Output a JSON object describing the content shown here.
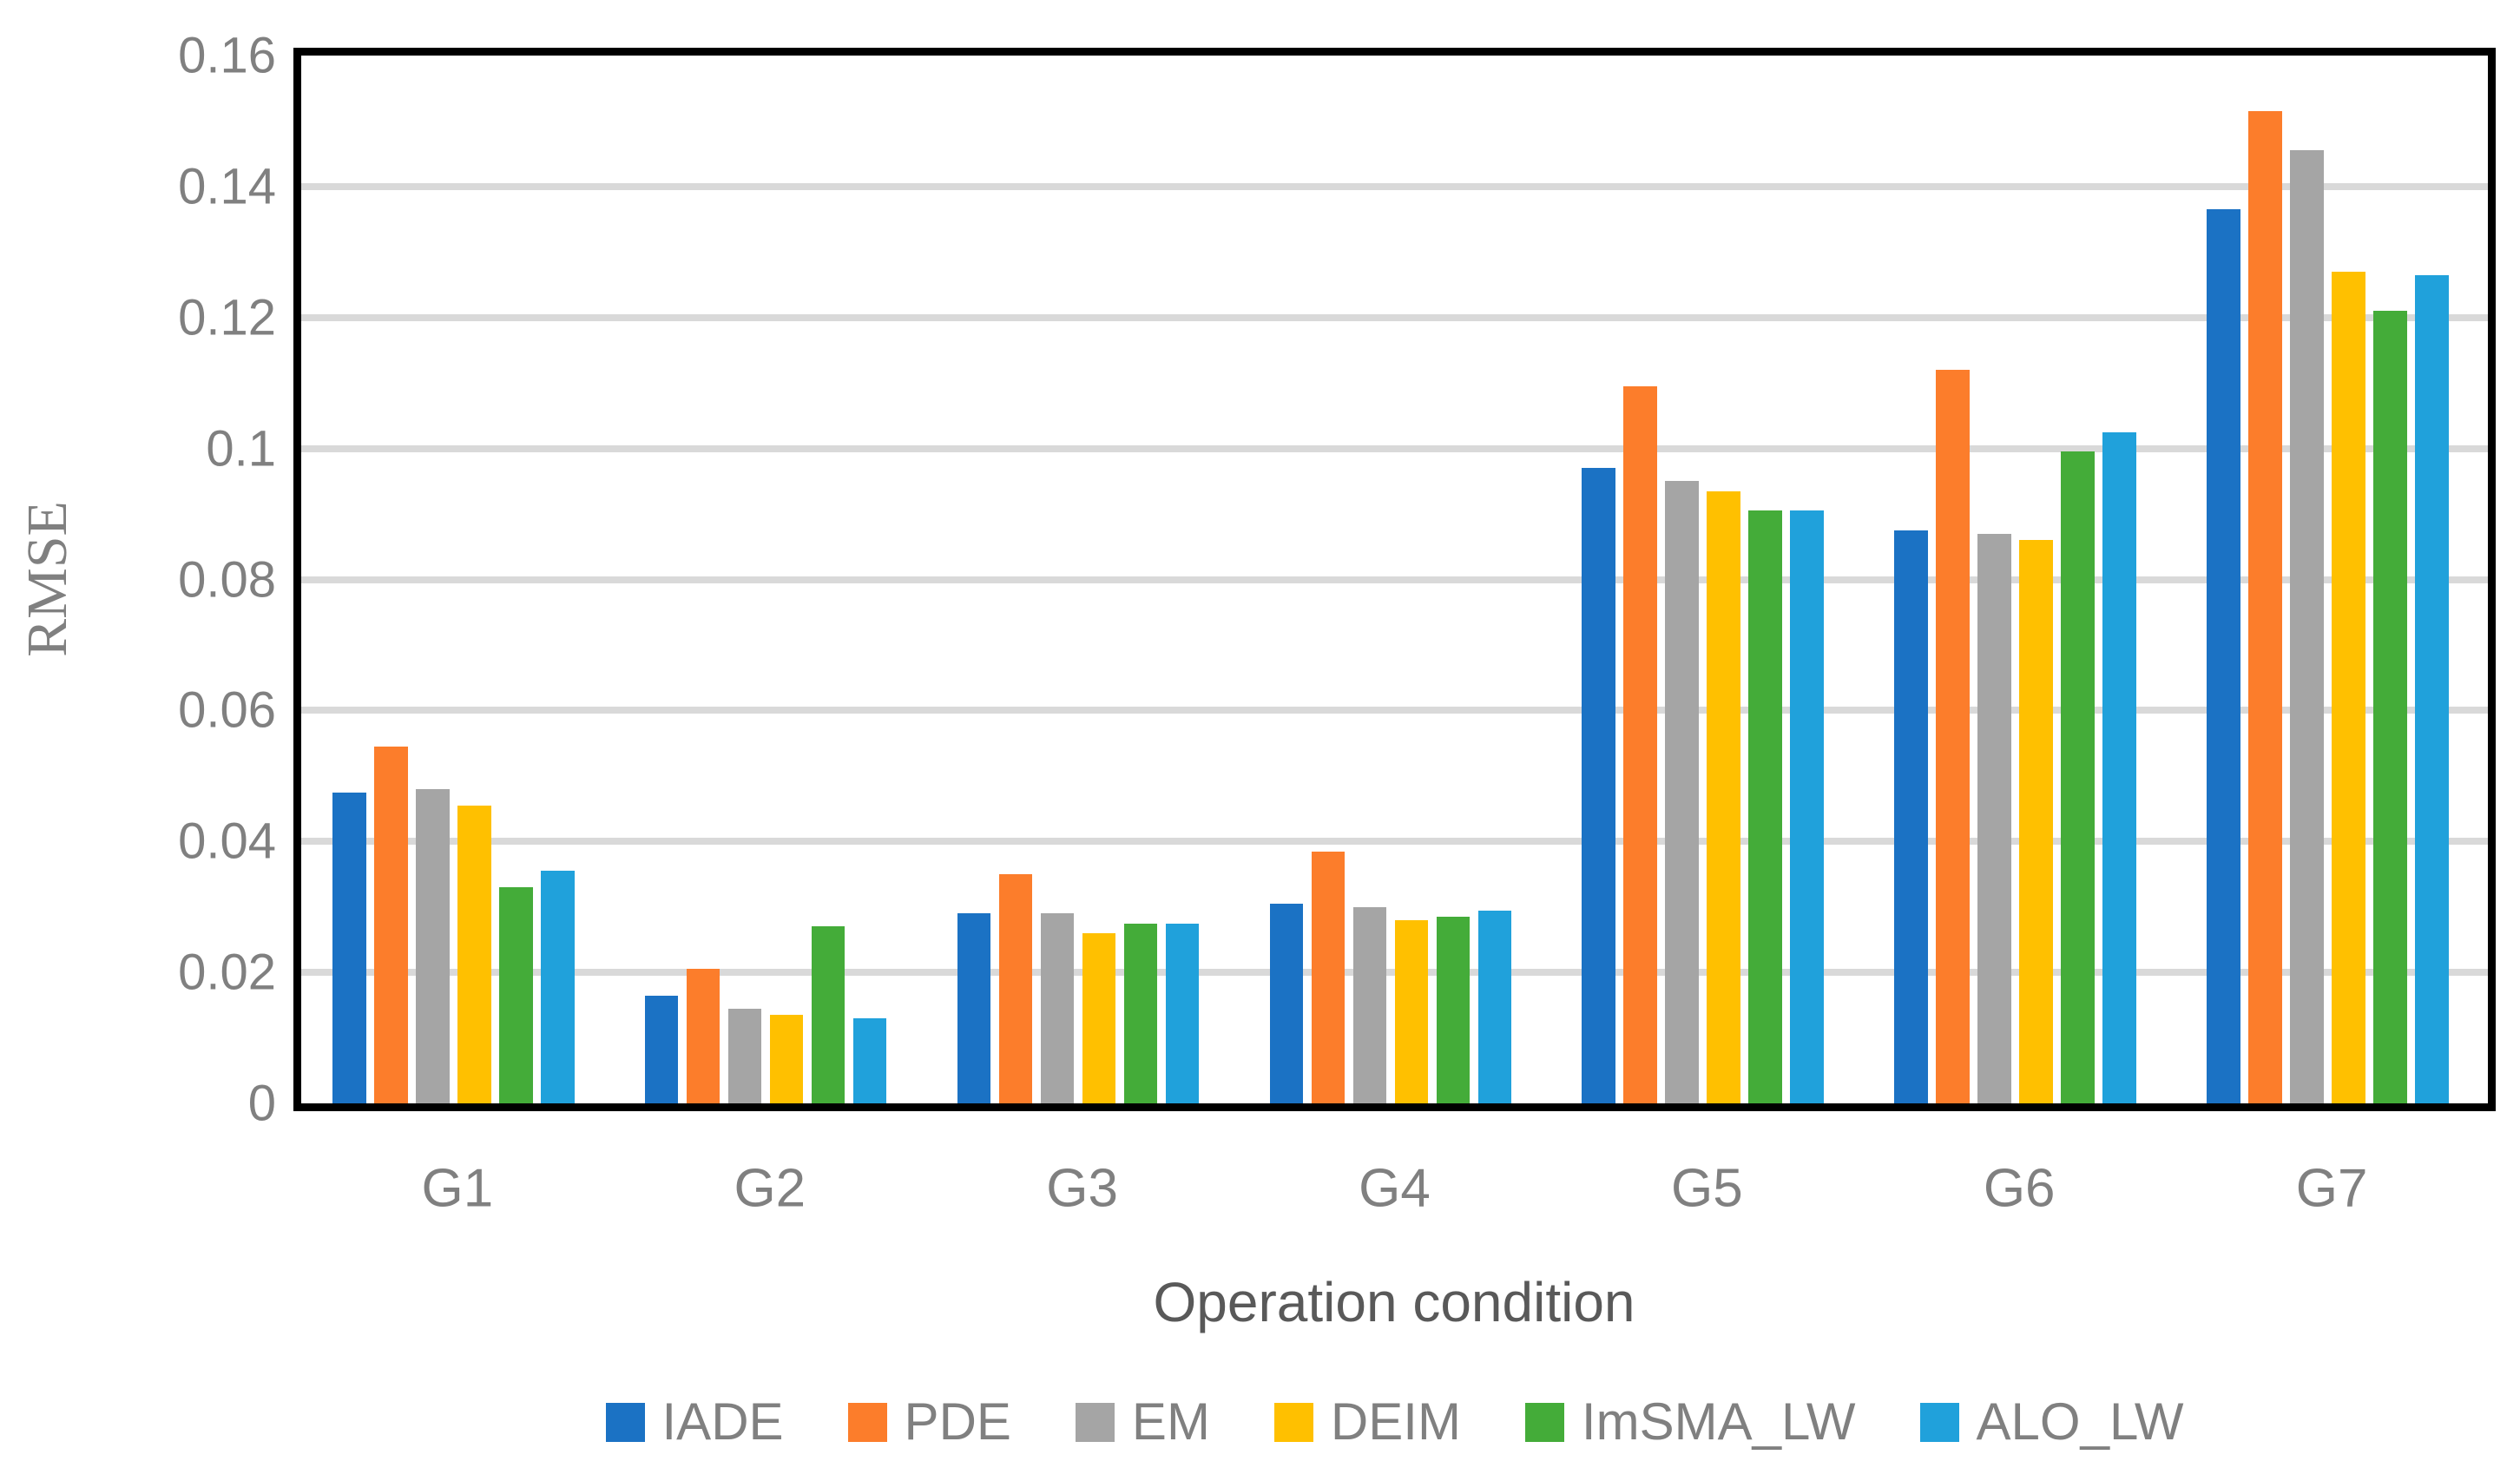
{
  "chart_data": {
    "type": "bar",
    "title": "",
    "xlabel": "Operation condition",
    "ylabel": "RMSE",
    "categories": [
      "G1",
      "G2",
      "G3",
      "G4",
      "G5",
      "G6",
      "G7"
    ],
    "series": [
      {
        "name": "IADE",
        "color": "#1b72c4",
        "values": [
          0.0475,
          0.0165,
          0.029,
          0.0305,
          0.097,
          0.0875,
          0.1365
        ]
      },
      {
        "name": "PDE",
        "color": "#fc7d2b",
        "values": [
          0.0545,
          0.0205,
          0.035,
          0.0385,
          0.1095,
          0.112,
          0.1515
        ]
      },
      {
        "name": "EM",
        "color": "#a5a5a5",
        "values": [
          0.048,
          0.0145,
          0.029,
          0.03,
          0.095,
          0.087,
          0.1455
        ]
      },
      {
        "name": "DEIM",
        "color": "#ffc000",
        "values": [
          0.0455,
          0.0135,
          0.026,
          0.028,
          0.0935,
          0.086,
          0.127
        ]
      },
      {
        "name": "ImSMA_LW",
        "color": "#44ac39",
        "values": [
          0.033,
          0.027,
          0.0275,
          0.0285,
          0.0905,
          0.0995,
          0.121
        ]
      },
      {
        "name": "ALO_LW",
        "color": "#20a1db",
        "values": [
          0.0355,
          0.013,
          0.0275,
          0.0295,
          0.0905,
          0.1025,
          0.1265
        ]
      }
    ],
    "ylim": [
      0,
      0.16
    ],
    "ytick_step": 0.02,
    "ytick_labels": [
      "0",
      "0.02",
      "0.04",
      "0.06",
      "0.08",
      "0.1",
      "0.12",
      "0.14",
      "0.16"
    ],
    "grid": true,
    "legend_position": "bottom",
    "plot_border_color": "#000000",
    "gridline_color": "#d9d9d9",
    "text_color": "#808080"
  }
}
